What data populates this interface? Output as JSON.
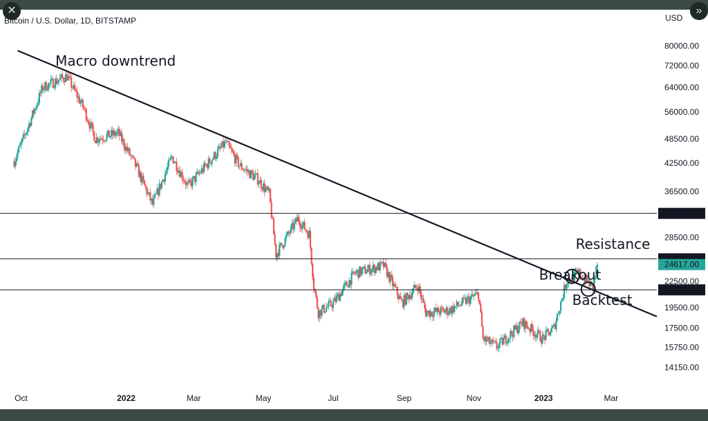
{
  "chart_data": {
    "type": "candlestick",
    "title": "Bitcoin / U.S. Dollar, 1D, BITSTAMP",
    "currency": "USD",
    "y_scale": "log",
    "ylim": [
      13000,
      92000
    ],
    "y_ticks": [
      "80000.00",
      "72000.00",
      "64000.00",
      "56000.00",
      "48500.00",
      "42500.00",
      "36500.00",
      "28500.00",
      "22500.00",
      "19500.00",
      "17500.00",
      "15750.00",
      "14150.00"
    ],
    "x_ticks": [
      "Oct",
      "2022",
      "Mar",
      "May",
      "Jul",
      "Sep",
      "Nov",
      "2023",
      "Mar"
    ],
    "price_path": [
      [
        "2021-09-25",
        43000
      ],
      [
        "2021-10-05",
        50000
      ],
      [
        "2021-10-20",
        64000
      ],
      [
        "2021-11-10",
        68000
      ],
      [
        "2021-11-25",
        57000
      ],
      [
        "2021-12-05",
        48500
      ],
      [
        "2021-12-25",
        50000
      ],
      [
        "2022-01-10",
        41500
      ],
      [
        "2022-01-24",
        34000
      ],
      [
        "2022-02-10",
        44000
      ],
      [
        "2022-02-24",
        37500
      ],
      [
        "2022-03-05",
        40000
      ],
      [
        "2022-03-29",
        47500
      ],
      [
        "2022-04-10",
        42000
      ],
      [
        "2022-04-26",
        39000
      ],
      [
        "2022-05-06",
        36000
      ],
      [
        "2022-05-12",
        26000
      ],
      [
        "2022-05-31",
        31500
      ],
      [
        "2022-06-10",
        29000
      ],
      [
        "2022-06-14",
        22000
      ],
      [
        "2022-06-18",
        19000
      ],
      [
        "2022-07-01",
        20000
      ],
      [
        "2022-07-20",
        23500
      ],
      [
        "2022-08-14",
        24500
      ],
      [
        "2022-08-30",
        20000
      ],
      [
        "2022-09-13",
        22000
      ],
      [
        "2022-09-20",
        19000
      ],
      [
        "2022-10-10",
        19200
      ],
      [
        "2022-11-05",
        21000
      ],
      [
        "2022-11-09",
        16500
      ],
      [
        "2022-11-21",
        15800
      ],
      [
        "2022-12-14",
        18000
      ],
      [
        "2022-12-31",
        16500
      ],
      [
        "2023-01-10",
        17500
      ],
      [
        "2023-01-21",
        22500
      ],
      [
        "2023-02-01",
        23500
      ],
      [
        "2023-02-13",
        21800
      ],
      [
        "2023-02-17",
        24617
      ]
    ],
    "horizontal_levels": [
      {
        "label": "32438.56",
        "value": 32438.56
      },
      {
        "label": "25388.38",
        "value": 25388.38
      },
      {
        "label": "21478.45",
        "value": 21478.45
      }
    ],
    "current_price": {
      "label": "24617.00",
      "value": 24617,
      "color": "#26a69a"
    },
    "trendline": {
      "points": [
        [
          "2021-09-28",
          78000
        ],
        [
          "2023-04-10",
          18600
        ]
      ]
    },
    "annotations": [
      {
        "text": "Macro downtrend",
        "x": "2021-10-31",
        "y": 72000,
        "anchor": "start"
      },
      {
        "text": "Resistance",
        "x": "2023-01-29",
        "y": 26800,
        "anchor": "start"
      },
      {
        "text": "Breakout",
        "x": "2022-12-28",
        "y": 22700,
        "anchor": "start"
      },
      {
        "text": "Backtest",
        "x": "2023-01-26",
        "y": 19800,
        "anchor": "start"
      }
    ],
    "markers": [
      {
        "name": "breakout-circle",
        "x": "2023-01-26",
        "y": 23100
      },
      {
        "name": "backtest-circle",
        "x": "2023-02-09",
        "y": 21550
      }
    ],
    "colors": {
      "up": "#26a69a",
      "down": "#ef5350",
      "line": "#131722"
    }
  }
}
